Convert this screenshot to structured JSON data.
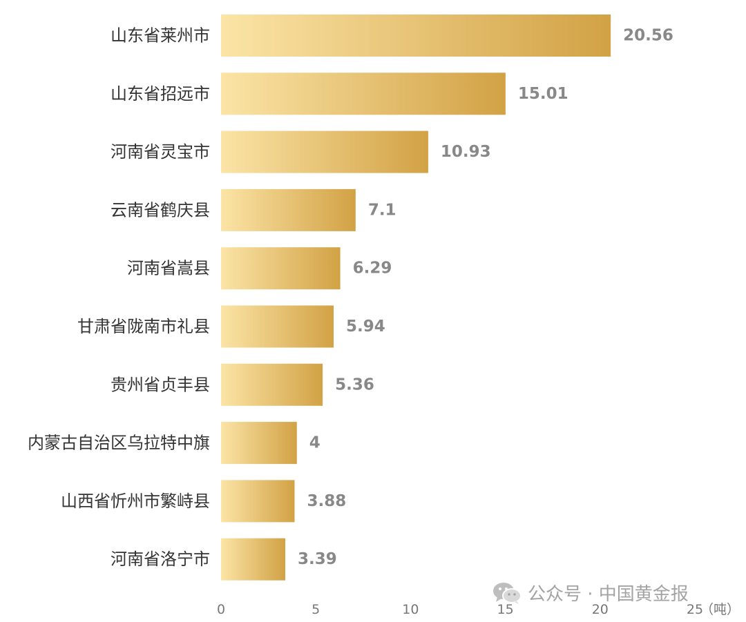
{
  "chart_data": {
    "type": "bar",
    "orientation": "horizontal",
    "categories": [
      "山东省莱州市",
      "山东省招远市",
      "河南省灵宝市",
      "云南省鹤庆县",
      "河南省嵩县",
      "甘肃省陇南市礼县",
      "贵州省贞丰县",
      "内蒙古自治区乌拉特中旗",
      "山西省忻州市繁峙县",
      "河南省洛宁市"
    ],
    "values": [
      20.56,
      15.01,
      10.93,
      7.1,
      6.29,
      5.94,
      5.36,
      4,
      3.88,
      3.39
    ],
    "value_labels": [
      "20.56",
      "15.01",
      "10.93",
      "7.1",
      "6.29",
      "5.94",
      "5.36",
      "4",
      "3.88",
      "3.39"
    ],
    "xlim": [
      0,
      25
    ],
    "x_ticks": [
      0,
      5,
      10,
      15,
      20,
      25
    ],
    "x_tick_labels": [
      "0",
      "5",
      "10",
      "15",
      "20",
      "25"
    ],
    "unit": "（吨）",
    "grid": false,
    "colors": {
      "bar_start": "#fbe4a6",
      "bar_end": "#d2a245",
      "category_text": "#333333",
      "value_text": "#888888",
      "tick_text": "#777777"
    }
  },
  "watermark": {
    "text": "公众号 · 中国黄金报",
    "icon": "wechat-icon"
  }
}
